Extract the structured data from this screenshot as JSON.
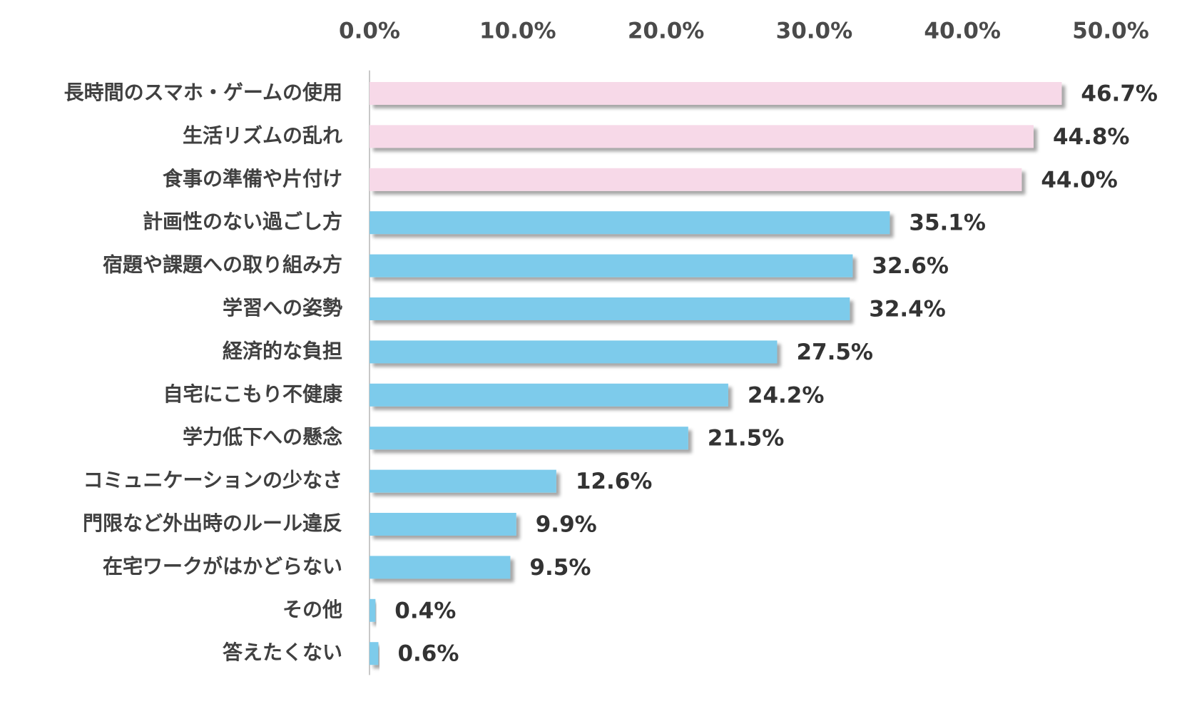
{
  "chart_data": {
    "type": "bar",
    "orientation": "horizontal",
    "title": "",
    "xlabel": "",
    "ylabel": "",
    "xlim": [
      0,
      50
    ],
    "tick_values": [
      0,
      10,
      20,
      30,
      40,
      50
    ],
    "tick_labels": [
      "0.0%",
      "10.0%",
      "20.0%",
      "30.0%",
      "40.0%",
      "50.0%"
    ],
    "axis_position": "top",
    "grid": false,
    "legend": "none",
    "categories": [
      "長時間のスマホ・ゲームの使用",
      "生活リズムの乱れ",
      "食事の準備や片付け",
      "計画性のない過ごし方",
      "宿題や課題への取り組み方",
      "学習への姿勢",
      "経済的な負担",
      "自宅にこもり不健康",
      "学力低下への懸念",
      "コミュニケーションの少なさ",
      "門限など外出時のルール違反",
      "在宅ワークがはかどらない",
      "その他",
      "答えたくない"
    ],
    "values": [
      46.7,
      44.8,
      44.0,
      35.1,
      32.6,
      32.4,
      27.5,
      24.2,
      21.5,
      12.6,
      9.9,
      9.5,
      0.4,
      0.6
    ],
    "value_labels": [
      "46.7%",
      "44.8%",
      "44.0%",
      "35.1%",
      "32.6%",
      "32.4%",
      "27.5%",
      "24.2%",
      "21.5%",
      "12.6%",
      "9.9%",
      "9.5%",
      "0.4%",
      "0.6%"
    ],
    "colors": [
      "#f7d9e8",
      "#f7d9e8",
      "#f7d9e8",
      "#7dcbeb",
      "#7dcbeb",
      "#7dcbeb",
      "#7dcbeb",
      "#7dcbeb",
      "#7dcbeb",
      "#7dcbeb",
      "#7dcbeb",
      "#7dcbeb",
      "#7dcbeb",
      "#7dcbeb"
    ],
    "highlight_color": "#f7d9e8",
    "base_color": "#7dcbeb",
    "axis_line_color": "#c8c8c8"
  }
}
